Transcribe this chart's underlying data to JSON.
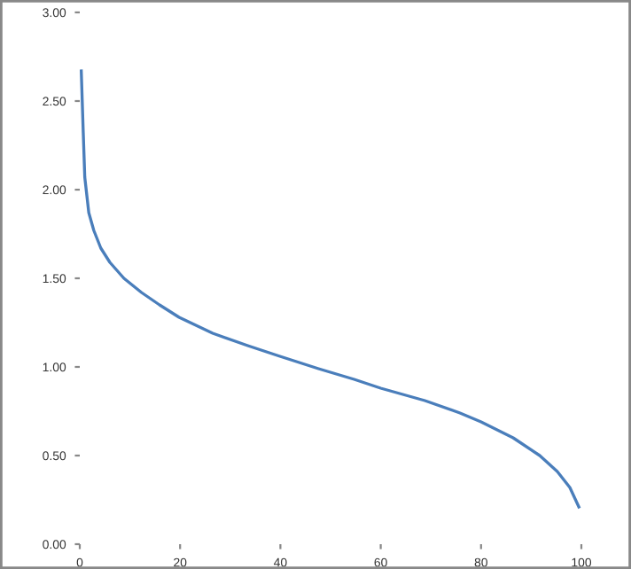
{
  "chart_data": {
    "type": "line",
    "x": [
      0.3,
      0.7,
      1.0,
      1.8,
      2.8,
      4.2,
      6,
      8.8,
      12.3,
      15.9,
      19.8,
      26.5,
      33.5,
      39.9,
      47.6,
      54.7,
      60,
      68.8,
      75.8,
      80,
      86.4,
      91.7,
      95.2,
      97.7,
      99.5
    ],
    "series": [
      {
        "color": "#4a7ebb",
        "values": [
          2.67,
          2.32,
          2.07,
          1.87,
          1.77,
          1.67,
          1.59,
          1.5,
          1.42,
          1.35,
          1.28,
          1.19,
          1.12,
          1.06,
          0.99,
          0.93,
          0.88,
          0.81,
          0.74,
          0.69,
          0.6,
          0.5,
          0.41,
          0.32,
          0.21
        ]
      }
    ],
    "xlim": [
      0,
      100
    ],
    "xticks": [
      0,
      20,
      40,
      60,
      80,
      100
    ],
    "ylim": [
      0,
      3
    ],
    "yticks": [
      {
        "value": 0,
        "label": "0.00"
      },
      {
        "value": 0.5,
        "label": "0.50"
      },
      {
        "value": 1,
        "label": "1.00"
      },
      {
        "value": 1.5,
        "label": "1.50"
      },
      {
        "value": 2,
        "label": "2.00"
      },
      {
        "value": 2.5,
        "label": "2.50"
      },
      {
        "value": 3,
        "label": "3.00"
      }
    ],
    "grid": false,
    "marker": "none",
    "line_style": "solid"
  }
}
